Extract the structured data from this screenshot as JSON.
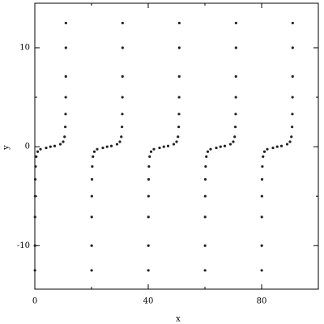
{
  "chart_data": {
    "type": "scatter",
    "x_label": "x",
    "y_label": "y",
    "xlim": [
      0,
      100
    ],
    "ylim": [
      -14.4,
      14.5
    ],
    "xticks": [
      0,
      40,
      80
    ],
    "yticks": [
      -10,
      0,
      10
    ],
    "xminorticks": [
      20,
      60,
      100
    ],
    "yminorticks": [
      -5,
      5
    ],
    "color": "#222222",
    "x": [
      0.04,
      0.05,
      0.07,
      0.1,
      0.15,
      0.25,
      0.5,
      1,
      2,
      4,
      5.5,
      7,
      9,
      10,
      10.5,
      10.75,
      10.85,
      10.9,
      10.93,
      10.95,
      10.96,
      20.04,
      20.05,
      20.07,
      20.1,
      20.15,
      20.25,
      20.5,
      21,
      22,
      24,
      25.5,
      27,
      29,
      30,
      30.5,
      30.75,
      30.85,
      30.9,
      30.93,
      30.95,
      30.96,
      40.04,
      40.05,
      40.07,
      40.1,
      40.15,
      40.25,
      40.5,
      41,
      42,
      44,
      45.5,
      47,
      49,
      50,
      50.5,
      50.75,
      50.85,
      50.9,
      50.93,
      50.95,
      50.96,
      60.04,
      60.05,
      60.07,
      60.1,
      60.15,
      60.25,
      60.5,
      61,
      62,
      64,
      65.5,
      67,
      69,
      70,
      70.5,
      70.75,
      70.85,
      70.9,
      70.93,
      70.95,
      70.96,
      80.04,
      80.05,
      80.07,
      80.1,
      80.15,
      80.25,
      80.5,
      81,
      82,
      84,
      85.5,
      87,
      89,
      90,
      90.5,
      90.75,
      90.85,
      90.9,
      90.93,
      90.95,
      90.96
    ],
    "y": [
      -12.5,
      -10,
      -7.1,
      -5,
      -3.3,
      -2,
      -1,
      -0.5,
      -0.25,
      -0.12,
      0,
      0.07,
      0.25,
      0.5,
      1,
      2,
      3.3,
      5,
      7.1,
      10,
      12.5,
      -12.5,
      -10,
      -7.1,
      -5,
      -3.3,
      -2,
      -1,
      -0.5,
      -0.25,
      -0.12,
      0,
      0.07,
      0.25,
      0.5,
      1,
      2,
      3.3,
      5,
      7.1,
      10,
      12.5,
      -12.5,
      -10,
      -7.1,
      -5,
      -3.3,
      -2,
      -1,
      -0.5,
      -0.25,
      -0.12,
      0,
      0.07,
      0.25,
      0.5,
      1,
      2,
      3.3,
      5,
      7.1,
      10,
      12.5,
      -12.5,
      -10,
      -7.1,
      -5,
      -3.3,
      -2,
      -1,
      -0.5,
      -0.25,
      -0.12,
      0,
      0.07,
      0.25,
      0.5,
      1,
      2,
      3.3,
      5,
      7.1,
      10,
      12.5,
      -12.5,
      -10,
      -7.1,
      -5,
      -3.3,
      -2,
      -1,
      -0.5,
      -0.25,
      -0.12,
      0,
      0.07,
      0.25,
      0.5,
      1,
      2,
      3.3,
      5,
      7.1,
      10,
      12.5
    ]
  }
}
